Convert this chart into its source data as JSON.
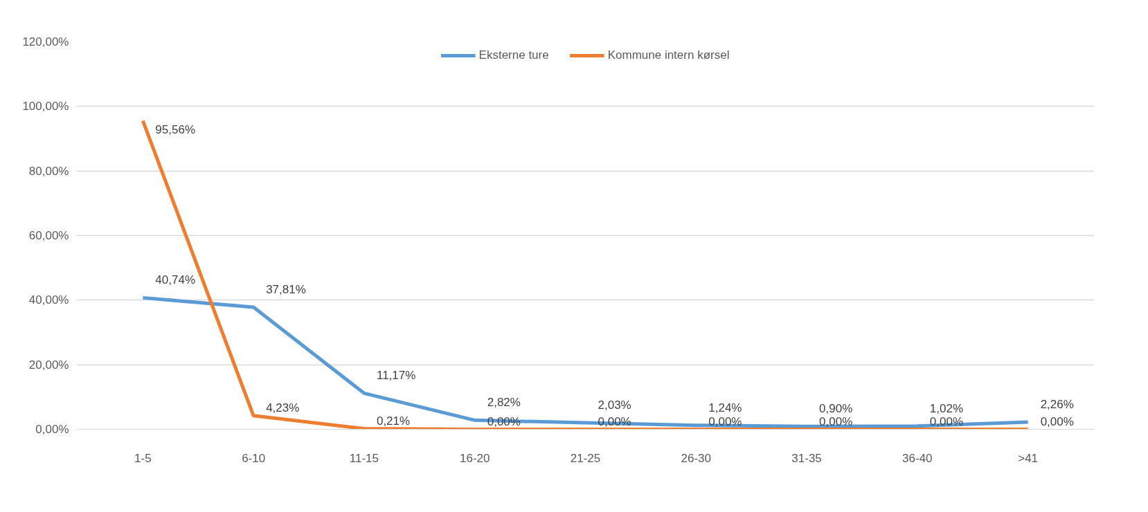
{
  "chart_data": {
    "type": "line",
    "categories": [
      "1-5",
      "6-10",
      "11-15",
      "16-20",
      "21-25",
      "26-30",
      "31-35",
      "36-40",
      ">41"
    ],
    "series": [
      {
        "name": "Eksterne ture",
        "color": "#5b9bd5",
        "values": [
          40.74,
          37.81,
          11.17,
          2.82,
          2.03,
          1.24,
          0.9,
          1.02,
          2.26
        ],
        "value_labels": [
          "40,74%",
          "37,81%",
          "11,17%",
          "2,82%",
          "2,03%",
          "1,24%",
          "0,90%",
          "1,02%",
          "2,26%"
        ]
      },
      {
        "name": "Kommune intern kørsel",
        "color": "#ed7d31",
        "values": [
          95.56,
          4.23,
          0.21,
          0,
          0,
          0,
          0,
          0,
          0
        ],
        "value_labels": [
          "95,56%",
          "4,23%",
          "0,21%",
          "0,00%",
          "0,00%",
          "0,00%",
          "0,00%",
          "0,00%",
          "0,00%"
        ]
      }
    ],
    "ylim": [
      0,
      120
    ],
    "yticks": [
      {
        "value": 0,
        "label": "0,00%"
      },
      {
        "value": 20,
        "label": "20,00%"
      },
      {
        "value": 40,
        "label": "40,00%"
      },
      {
        "value": 60,
        "label": "60,00%"
      },
      {
        "value": 80,
        "label": "80,00%"
      },
      {
        "value": 100,
        "label": "100,00%"
      },
      {
        "value": 120,
        "label": "120,00%"
      }
    ],
    "grid": "y",
    "legend": "top",
    "marker": "none",
    "line_style": "solid"
  }
}
